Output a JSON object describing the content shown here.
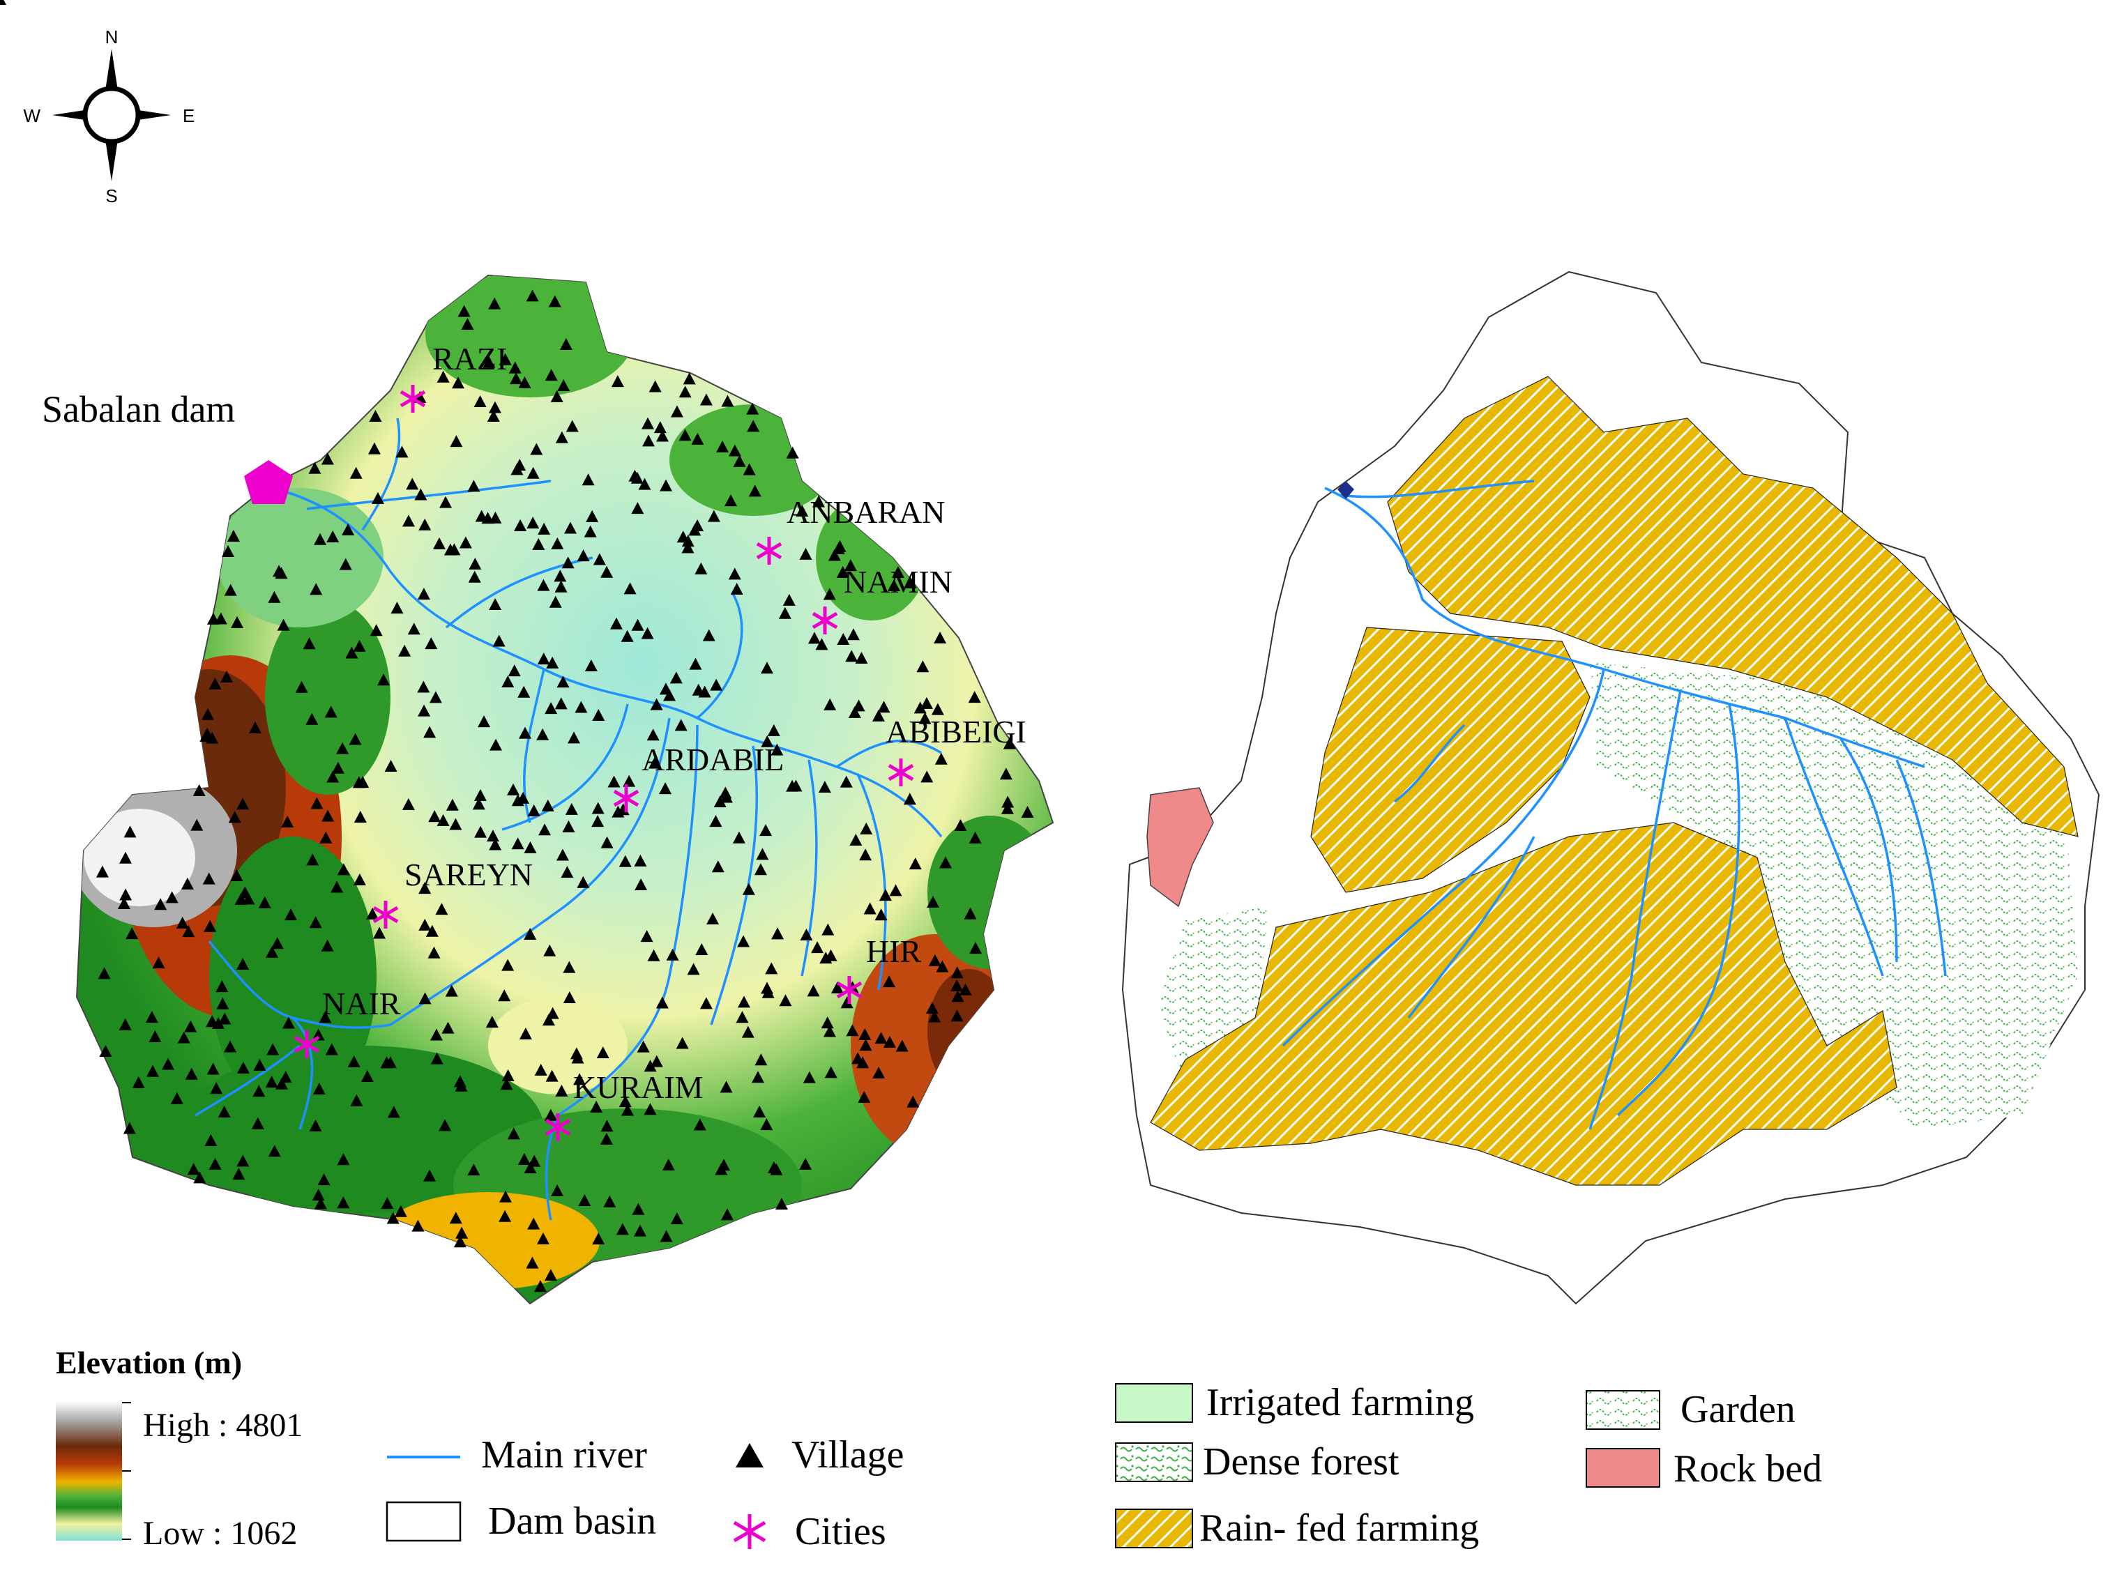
{
  "compass": {
    "n": "N",
    "s": "S",
    "e": "E",
    "w": "W"
  },
  "left_map": {
    "dam_label": "Sabalan dam",
    "cities": [
      {
        "name": "RAZI"
      },
      {
        "name": "ANBARAN"
      },
      {
        "name": "NAMIN"
      },
      {
        "name": "ABIBEIGI"
      },
      {
        "name": "ARDABIL"
      },
      {
        "name": "SAREYN"
      },
      {
        "name": "HIR"
      },
      {
        "name": "NAIR"
      },
      {
        "name": "KURAIM"
      }
    ]
  },
  "legend_elevation": {
    "title": "Elevation (m)",
    "high": "High : 4801",
    "low": "Low : 1062",
    "colors": [
      "#ffffff",
      "#a9a9a9",
      "#6b2a0a",
      "#b83a08",
      "#f0b400",
      "#4cb33a",
      "#1f8a1f",
      "#f2f2a0",
      "#7fe0d8"
    ]
  },
  "legend_features": {
    "main_river": "Main river",
    "dam_basin": "Dam basin",
    "village": "Village",
    "cities": "Cities",
    "river_color": "#1e90ff",
    "city_color": "#ee00cc"
  },
  "legend_landuse": {
    "irrigated": "Irrigated farming",
    "dense_forest": "Dense forest",
    "rainfed": "Rain- fed farming",
    "garden": "Garden",
    "rock_bed": "Rock bed",
    "irrigated_color": "#c8f7c8",
    "rainfed_color": "#e8b800",
    "rock_color": "#f08a8a",
    "forest_color": "#3cb043"
  }
}
